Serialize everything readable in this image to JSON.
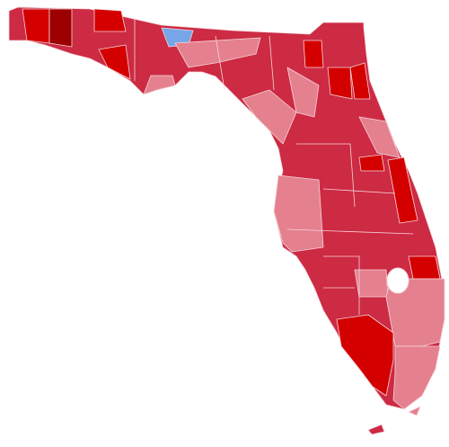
{
  "map": {
    "colors": {
      "outline": "#cd2a43",
      "dark": "#d40000",
      "darkest": "#9c0000",
      "light": "#e5808f",
      "blue": "#76a6e8",
      "lake": "#ffffff",
      "border": "#f4d6da"
    }
  }
}
